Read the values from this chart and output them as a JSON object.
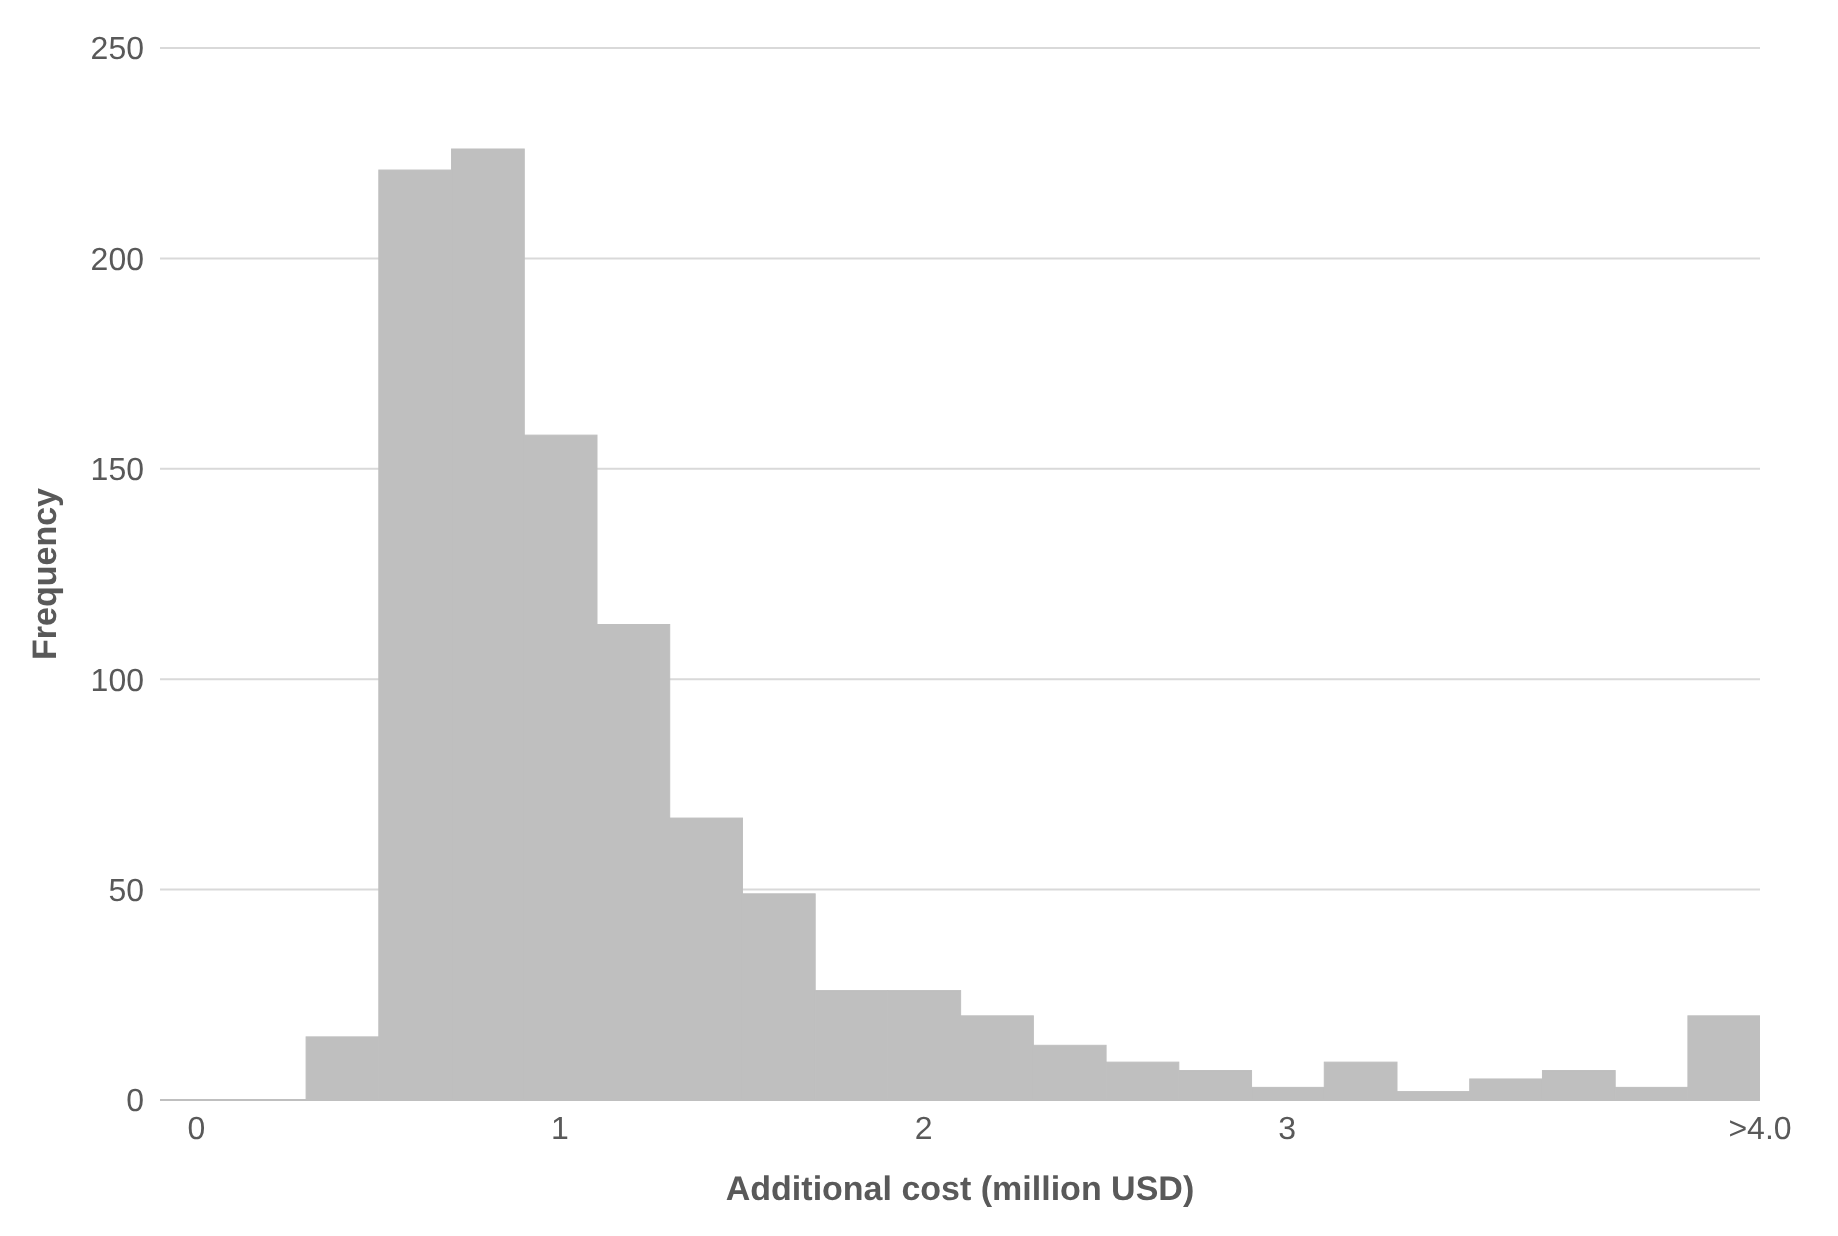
{
  "chart_data": {
    "type": "histogram",
    "xlabel": "Additional cost (million USD)",
    "ylabel": "Frequency",
    "bins": [
      0.3,
      0.5,
      0.7,
      0.9,
      1.1,
      1.3,
      1.5,
      1.7,
      1.9,
      2.1,
      2.3,
      2.5,
      2.7,
      2.9,
      3.1,
      3.3,
      3.5,
      3.7,
      3.9,
      4.1,
      4.3
    ],
    "values": [
      15,
      221,
      226,
      158,
      113,
      67,
      49,
      26,
      26,
      20,
      13,
      9,
      7,
      3,
      9,
      2,
      5,
      7,
      3,
      20
    ],
    "color": "#bfbfbf",
    "xlim": [
      -0.1,
      4.3
    ],
    "xticks": [
      0,
      1,
      2,
      3,
      {
        "value": 4.3,
        "label": ">4.0"
      }
    ],
    "ylim": [
      0,
      250
    ],
    "yticks": [
      0,
      50,
      100,
      150,
      200,
      250
    ],
    "grid": "y",
    "legend": false
  }
}
